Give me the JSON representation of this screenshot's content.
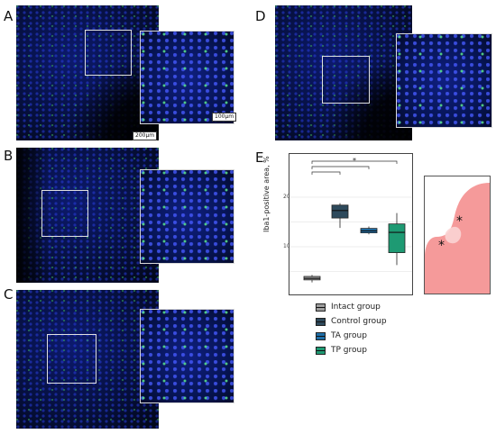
{
  "figure": {
    "panel_letters": [
      "A",
      "B",
      "C",
      "D",
      "E"
    ],
    "scale_bars": {
      "overview": "200μm",
      "inset": "100μm"
    }
  },
  "chart_data": {
    "type": "box",
    "xlabel": "",
    "ylabel": "Iba1-positive area, %",
    "yticks": [
      10,
      20
    ],
    "ylim": [
      2,
      24
    ],
    "grid": true,
    "legend_position": "bottom",
    "significance_marker": "*",
    "groups": [
      {
        "name": "Intact group",
        "color": "#9e9e9e",
        "min": 2.8,
        "q1": 3.3,
        "median": 3.6,
        "q3": 4.0,
        "max": 4.3
      },
      {
        "name": "Control group",
        "color": "#2e4a5c",
        "min": 13.8,
        "q1": 15.8,
        "median": 17.3,
        "q3": 18.4,
        "max": 18.8
      },
      {
        "name": "TA group",
        "color": "#1f6fa8",
        "min": 12.5,
        "q1": 12.8,
        "median": 13.2,
        "q3": 13.7,
        "max": 14.1
      },
      {
        "name": "TP group",
        "color": "#1e9a73",
        "min": 6.3,
        "q1": 8.8,
        "median": 12.9,
        "q3": 14.6,
        "max": 16.8
      }
    ],
    "comparisons": [
      [
        0,
        1
      ],
      [
        0,
        2
      ],
      [
        0,
        3
      ]
    ]
  },
  "schematic": {
    "markers": [
      "*",
      "*"
    ],
    "fill": "#f59a9a"
  }
}
